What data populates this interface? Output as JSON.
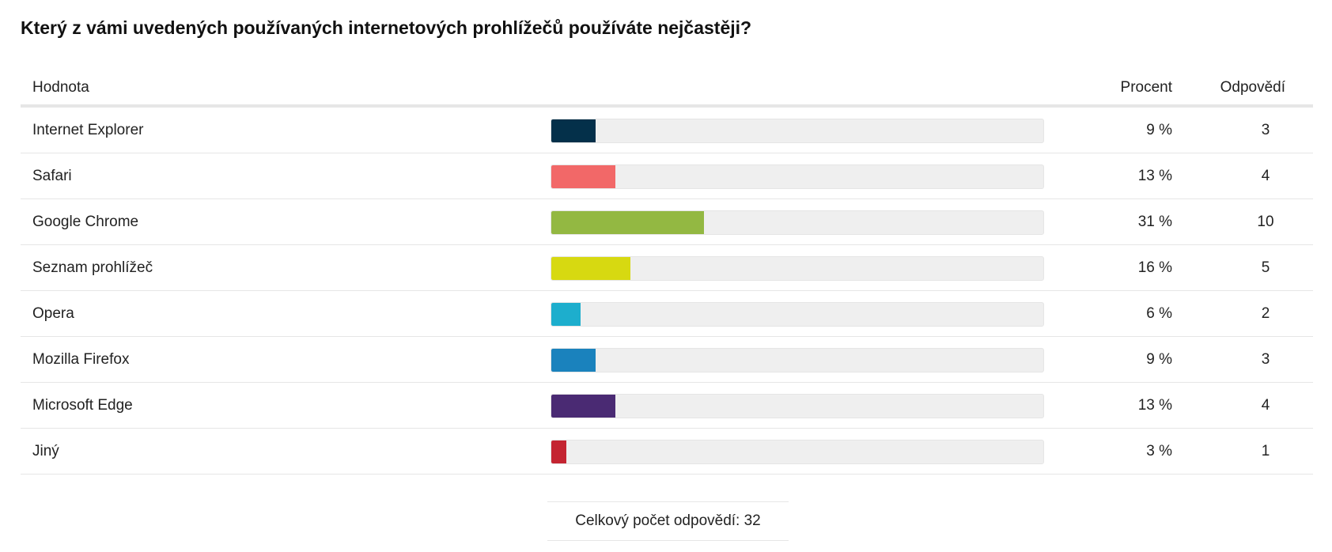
{
  "question": "Který z vámi uvedených používaných internetových prohlížečů používáte nejčastěji?",
  "table": {
    "header_value": "Hodnota",
    "header_percent": "Procent",
    "header_count": "Odpovědí"
  },
  "total": {
    "label": "Celkový počet odpovědí:",
    "value": "32"
  },
  "chart_data": {
    "type": "bar",
    "orientation": "horizontal",
    "title": "Který z vámi uvedených používaných internetových prohlížečů používáte nejčastěji?",
    "categories": [
      "Internet Explorer",
      "Safari",
      "Google Chrome",
      "Seznam prohlížeč",
      "Opera",
      "Mozilla Firefox",
      "Microsoft Edge",
      "Jiný"
    ],
    "percent_labels": [
      "9 %",
      "13 %",
      "31 %",
      "16 %",
      "6 %",
      "9 %",
      "13 %",
      "3 %"
    ],
    "values": [
      9,
      13,
      31,
      16,
      6,
      9,
      13,
      3
    ],
    "counts": [
      3,
      4,
      10,
      5,
      2,
      3,
      4,
      1
    ],
    "colors": [
      "#04304a",
      "#f26868",
      "#93b842",
      "#d7d911",
      "#1daecd",
      "#1a82bd",
      "#4a2a73",
      "#c42431"
    ],
    "xlim": [
      0,
      100
    ],
    "total_responses": 32
  }
}
